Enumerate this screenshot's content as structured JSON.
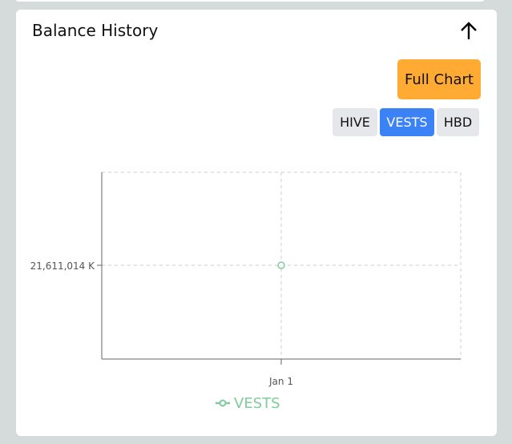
{
  "header": {
    "title": "Balance History",
    "collapse_icon": "arrow-up-icon"
  },
  "buttons": {
    "full_chart": "Full Chart"
  },
  "toggles": [
    {
      "label": "HIVE",
      "active": false
    },
    {
      "label": "VESTS",
      "active": true
    },
    {
      "label": "HBD",
      "active": false
    }
  ],
  "colors": {
    "accent_orange": "#ffab33",
    "active_blue": "#3b82f6",
    "series": "#82ca9d"
  },
  "chart_data": {
    "type": "line",
    "x": [
      "Jan 1"
    ],
    "series": [
      {
        "name": "VESTS",
        "values": [
          21611014
        ]
      }
    ],
    "ytick_labels": [
      "21,611,014 K"
    ],
    "xtick_labels": [
      "Jan 1"
    ],
    "grid": true,
    "legend": "bottom-center"
  }
}
